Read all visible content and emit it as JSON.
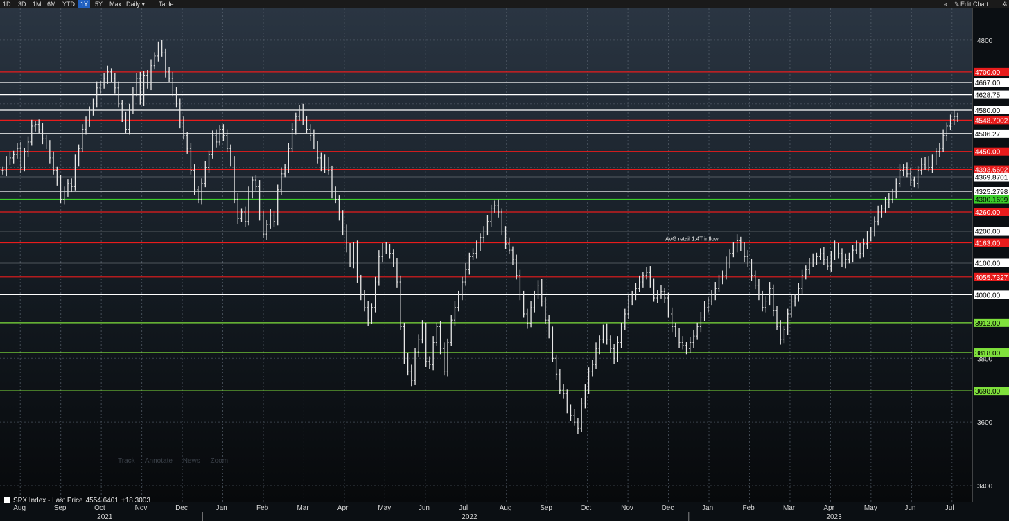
{
  "toolbar": {
    "ranges": [
      "1D",
      "3D",
      "1M",
      "6M",
      "YTD",
      "1Y",
      "5Y",
      "Max"
    ],
    "active_range": "1Y",
    "frequency": "Daily ▾",
    "table": "Table",
    "edit_chart": "Edit Chart",
    "collapse_icon": "double-chevron-left-icon",
    "pencil_icon": "pencil-icon",
    "gear_icon": "gear-icon"
  },
  "faded_tools": [
    "Track",
    "Annotate",
    "News",
    "Zoom"
  ],
  "legend": {
    "series_name": "SPX Index - Last Price",
    "last_price": "4554.6401",
    "change": "+18.3003"
  },
  "annotation": "AVG retail 1.4T inflow",
  "colors": {
    "background": "#0b0f13",
    "price_bars": "#e6e6e6",
    "red_level": "#e81c1c",
    "white_level": "#ffffff",
    "green_level": "#3ccd2b",
    "bright_green_level": "#7fe03c"
  },
  "chart_data": {
    "type": "line",
    "title": "",
    "ylim": [
      3350,
      4900
    ],
    "y_ticks": [
      "4800",
      "3800",
      "3600",
      "3400"
    ],
    "x_ticks": [
      {
        "label": "Aug",
        "year": "2021"
      },
      {
        "label": "Sep"
      },
      {
        "label": "Oct"
      },
      {
        "label": "Nov"
      },
      {
        "label": "Dec"
      },
      {
        "label": "Jan"
      },
      {
        "label": "Feb"
      },
      {
        "label": "Mar"
      },
      {
        "label": "Apr"
      },
      {
        "label": "May"
      },
      {
        "label": "Jun"
      },
      {
        "label": "Jul"
      },
      {
        "label": "Aug"
      },
      {
        "label": "Sep"
      },
      {
        "label": "Oct"
      },
      {
        "label": "Nov"
      },
      {
        "label": "Dec"
      },
      {
        "label": "Jan"
      },
      {
        "label": "Feb"
      },
      {
        "label": "Mar"
      },
      {
        "label": "Apr"
      },
      {
        "label": "May"
      },
      {
        "label": "Jun"
      },
      {
        "label": "Jul"
      }
    ],
    "year_labels": [
      {
        "label": "2021",
        "month_index": 2
      },
      {
        "label": "2022",
        "month_index": 11
      },
      {
        "label": "2023",
        "month_index": 20
      }
    ],
    "levels": [
      {
        "value": 4700.0,
        "label": "4700.00",
        "color": "red"
      },
      {
        "value": 4667.0,
        "label": "4667.00",
        "color": "white"
      },
      {
        "value": 4628.75,
        "label": "4628.75",
        "color": "white"
      },
      {
        "value": 4580.0,
        "label": "4580.00",
        "color": "white"
      },
      {
        "value": 4548.7002,
        "label": "4548.7002",
        "color": "red"
      },
      {
        "value": 4506.27,
        "label": "4506.27",
        "color": "white"
      },
      {
        "value": 4450.0,
        "label": "4450.00",
        "color": "red"
      },
      {
        "value": 4393.6602,
        "label": "4393.6602",
        "color": "red"
      },
      {
        "value": 4369.8701,
        "label": "4369.8701",
        "color": "white"
      },
      {
        "value": 4325.2798,
        "label": "4325.2798",
        "color": "white"
      },
      {
        "value": 4300.1699,
        "label": "4300.1699",
        "color": "green"
      },
      {
        "value": 4260.0,
        "label": "4260.00",
        "color": "red"
      },
      {
        "value": 4200.0,
        "label": "4200.00",
        "color": "white"
      },
      {
        "value": 4163.0,
        "label": "4163.00",
        "color": "red"
      },
      {
        "value": 4100.0,
        "label": "4100.00",
        "color": "white"
      },
      {
        "value": 4055.7327,
        "label": "4055.7327",
        "color": "red"
      },
      {
        "value": 4000.0,
        "label": "4000.00",
        "color": "white"
      },
      {
        "value": 3912.0,
        "label": "3912.00",
        "color": "bright_green"
      },
      {
        "value": 3818.0,
        "label": "3818.00",
        "color": "bright_green"
      },
      {
        "value": 3698.0,
        "label": "3698.00",
        "color": "bright_green"
      }
    ],
    "series": [
      {
        "values": [
          4390,
          4420,
          4430,
          4440,
          4460,
          4400,
          4450,
          4480,
          4530,
          4535,
          4520,
          4490,
          4470,
          4430,
          4390,
          4360,
          4300,
          4320,
          4350,
          4340,
          4420,
          4460,
          4520,
          4540,
          4580,
          4600,
          4650,
          4660,
          4680,
          4700,
          4680,
          4650,
          4600,
          4560,
          4520,
          4580,
          4640,
          4680,
          4610,
          4690,
          4660,
          4720,
          4750,
          4780,
          4760,
          4700,
          4680,
          4640,
          4600,
          4540,
          4500,
          4460,
          4390,
          4330,
          4300,
          4350,
          4400,
          4440,
          4500,
          4480,
          4520,
          4500,
          4460,
          4420,
          4300,
          4240,
          4260,
          4230,
          4320,
          4360,
          4340,
          4250,
          4190,
          4220,
          4250,
          4230,
          4330,
          4380,
          4400,
          4460,
          4520,
          4560,
          4580,
          4550,
          4520,
          4500,
          4470,
          4430,
          4400,
          4420,
          4390,
          4320,
          4300,
          4250,
          4200,
          4150,
          4100,
          4150,
          4050,
          4000,
          3960,
          3920,
          3960,
          4040,
          4120,
          4150,
          4140,
          4130,
          4100,
          4040,
          3900,
          3800,
          3760,
          3730,
          3820,
          3860,
          3900,
          3790,
          3780,
          3850,
          3900,
          3830,
          3760,
          3850,
          3920,
          3960,
          4000,
          4040,
          4080,
          4120,
          4130,
          4150,
          4180,
          4200,
          4230,
          4270,
          4280,
          4260,
          4200,
          4160,
          4140,
          4110,
          4060,
          4000,
          3940,
          3910,
          3960,
          4000,
          4030,
          3980,
          3920,
          3880,
          3800,
          3750,
          3700,
          3690,
          3640,
          3620,
          3600,
          3580,
          3660,
          3700,
          3760,
          3780,
          3830,
          3860,
          3890,
          3860,
          3830,
          3800,
          3850,
          3900,
          3940,
          3980,
          4000,
          4020,
          4040,
          4060,
          4070,
          4040,
          3990,
          4000,
          4010,
          3990,
          3940,
          3900,
          3880,
          3850,
          3840,
          3830,
          3850,
          3870,
          3900,
          3930,
          3960,
          3980,
          4000,
          4020,
          4050,
          4060,
          4100,
          4130,
          4150,
          4170,
          4150,
          4120,
          4100,
          4060,
          4030,
          4000,
          3960,
          3980,
          4020,
          3950,
          3900,
          3860,
          3890,
          3940,
          3980,
          3990,
          4020,
          4060,
          4080,
          4100,
          4110,
          4120,
          4130,
          4110,
          4090,
          4120,
          4150,
          4130,
          4100,
          4110,
          4120,
          4140,
          4150,
          4130,
          4160,
          4180,
          4200,
          4230,
          4260,
          4270,
          4290,
          4300,
          4320,
          4350,
          4390,
          4400,
          4380,
          4360,
          4350,
          4390,
          4410,
          4420,
          4400,
          4420,
          4450,
          4460,
          4500,
          4530,
          4550,
          4560,
          4555
        ]
      }
    ]
  }
}
